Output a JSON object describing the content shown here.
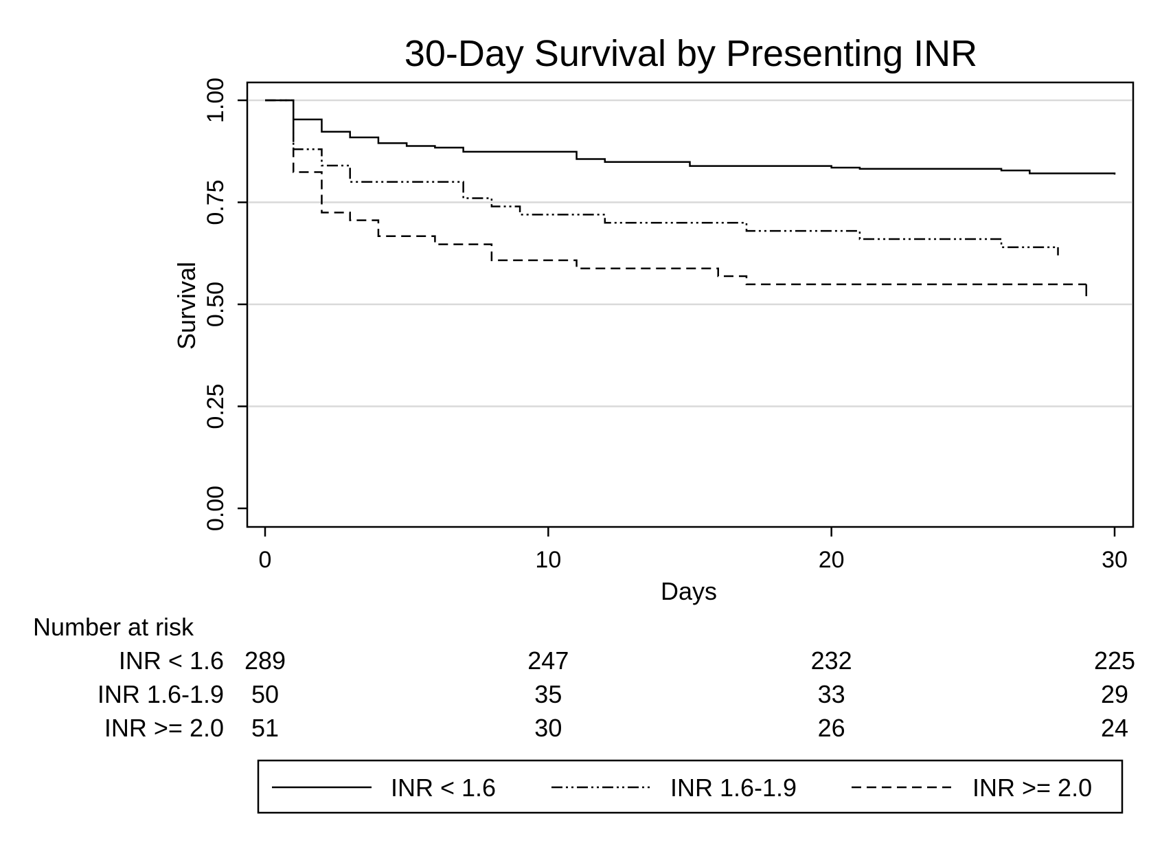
{
  "chart_data": {
    "type": "line",
    "subtype": "kaplan-meier step",
    "title": "30-Day Survival by Presenting INR",
    "xlabel": "Days",
    "ylabel": "Survival",
    "xlim": [
      0,
      30
    ],
    "ylim": [
      0,
      1
    ],
    "x_ticks": [
      "0",
      "10",
      "20",
      "30"
    ],
    "y_ticks": [
      "0.00",
      "0.25",
      "0.50",
      "0.75",
      "1.00"
    ],
    "grid": "horizontal",
    "legend_position": "bottom",
    "series": [
      {
        "name": "INR < 1.6",
        "style": "solid",
        "x": [
          0,
          1,
          2,
          3,
          4,
          5,
          6,
          7,
          11,
          12,
          15,
          20,
          21,
          26,
          27,
          30
        ],
        "y": [
          1.0,
          0.953,
          0.923,
          0.909,
          0.895,
          0.888,
          0.884,
          0.874,
          0.856,
          0.849,
          0.839,
          0.835,
          0.832,
          0.828,
          0.821,
          0.818
        ]
      },
      {
        "name": "INR 1.6-1.9",
        "style": "dash-dot-dot",
        "x": [
          0,
          1,
          2,
          3,
          7,
          8,
          9,
          12,
          17,
          21,
          26,
          28
        ],
        "y": [
          1.0,
          0.88,
          0.84,
          0.8,
          0.76,
          0.74,
          0.72,
          0.7,
          0.68,
          0.66,
          0.64,
          0.62
        ],
        "censor_at_end": true
      },
      {
        "name": "INR >= 2.0",
        "style": "dashed",
        "x": [
          0,
          1,
          2,
          3,
          4,
          6,
          8,
          11,
          16,
          17,
          29
        ],
        "y": [
          1.0,
          0.824,
          0.725,
          0.706,
          0.667,
          0.647,
          0.608,
          0.588,
          0.569,
          0.549,
          0.52
        ],
        "censor_at_end": true
      }
    ],
    "risk_table": {
      "header": "Number at risk",
      "times": [
        0,
        10,
        20,
        30
      ],
      "rows": [
        {
          "label": "INR < 1.6",
          "counts": [
            "289",
            "247",
            "232",
            "225"
          ]
        },
        {
          "label": "INR 1.6-1.9",
          "counts": [
            "50",
            "35",
            "33",
            "29"
          ]
        },
        {
          "label": "INR >= 2.0",
          "counts": [
            "51",
            "30",
            "26",
            "24"
          ]
        }
      ]
    },
    "colors": {
      "line": "#000000",
      "grid": "#d9d9d9",
      "frame": "#000000"
    }
  }
}
